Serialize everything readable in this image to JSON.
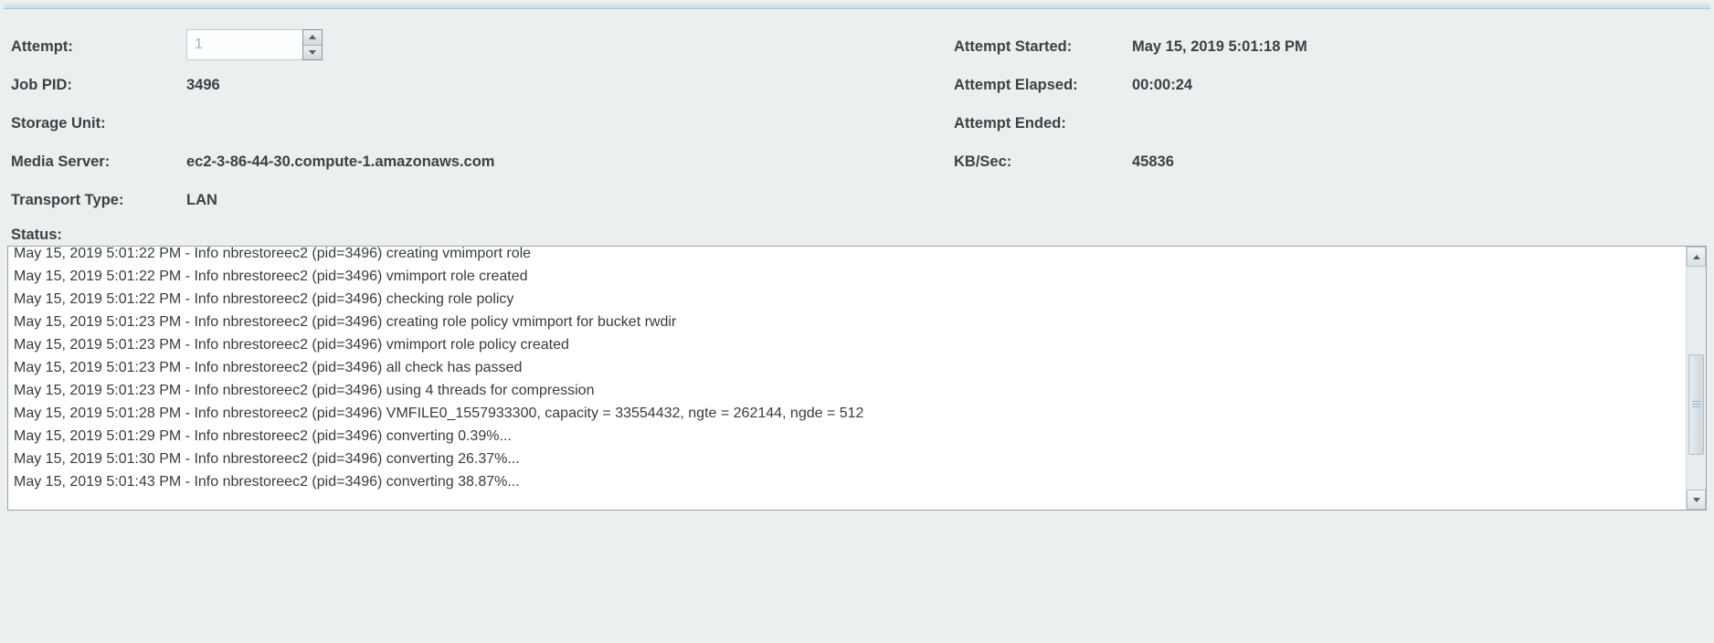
{
  "labels": {
    "attempt": "Attempt:",
    "job_pid": "Job PID:",
    "storage_unit": "Storage Unit:",
    "media_server": "Media Server:",
    "transport_type": "Transport Type:",
    "attempt_started": "Attempt Started:",
    "attempt_elapsed": "Attempt Elapsed:",
    "attempt_ended": "Attempt Ended:",
    "kb_sec": "KB/Sec:",
    "status": "Status:"
  },
  "values": {
    "attempt": "1",
    "job_pid": "3496",
    "storage_unit": "",
    "media_server": "ec2-3-86-44-30.compute-1.amazonaws.com",
    "transport_type": "LAN",
    "attempt_started": "May 15, 2019 5:01:18 PM",
    "attempt_elapsed": "00:00:24",
    "attempt_ended": "",
    "kb_sec": "45836"
  },
  "status_log": [
    "May 15, 2019 5:01:22 PM - Info nbrestoreec2 (pid=3496) creating vmimport role",
    "May 15, 2019 5:01:22 PM - Info nbrestoreec2 (pid=3496) vmimport role created",
    "May 15, 2019 5:01:22 PM - Info nbrestoreec2 (pid=3496) checking role policy",
    "May 15, 2019 5:01:23 PM - Info nbrestoreec2 (pid=3496) creating role policy vmimport for bucket rwdir",
    "May 15, 2019 5:01:23 PM - Info nbrestoreec2 (pid=3496) vmimport role policy created",
    "May 15, 2019 5:01:23 PM - Info nbrestoreec2 (pid=3496) all check has passed",
    "May 15, 2019 5:01:23 PM - Info nbrestoreec2 (pid=3496) using 4 threads for compression",
    "May 15, 2019 5:01:28 PM - Info nbrestoreec2 (pid=3496) VMFILE0_1557933300, capacity = 33554432, ngte = 262144, ngde = 512",
    "May 15, 2019 5:01:29 PM - Info nbrestoreec2 (pid=3496) converting 0.39%...",
    "May 15, 2019 5:01:30 PM - Info nbrestoreec2 (pid=3496) converting 26.37%...",
    "May 15, 2019 5:01:43 PM - Info nbrestoreec2 (pid=3496) converting 38.87%..."
  ],
  "colors": {
    "background": "#eceff0",
    "text": "#3b3e40",
    "log_box_bg": "#ffffff",
    "border": "#9aa4ab",
    "spinner_text": "#a6b0b6",
    "tab_strip": "#c9ddeb"
  }
}
